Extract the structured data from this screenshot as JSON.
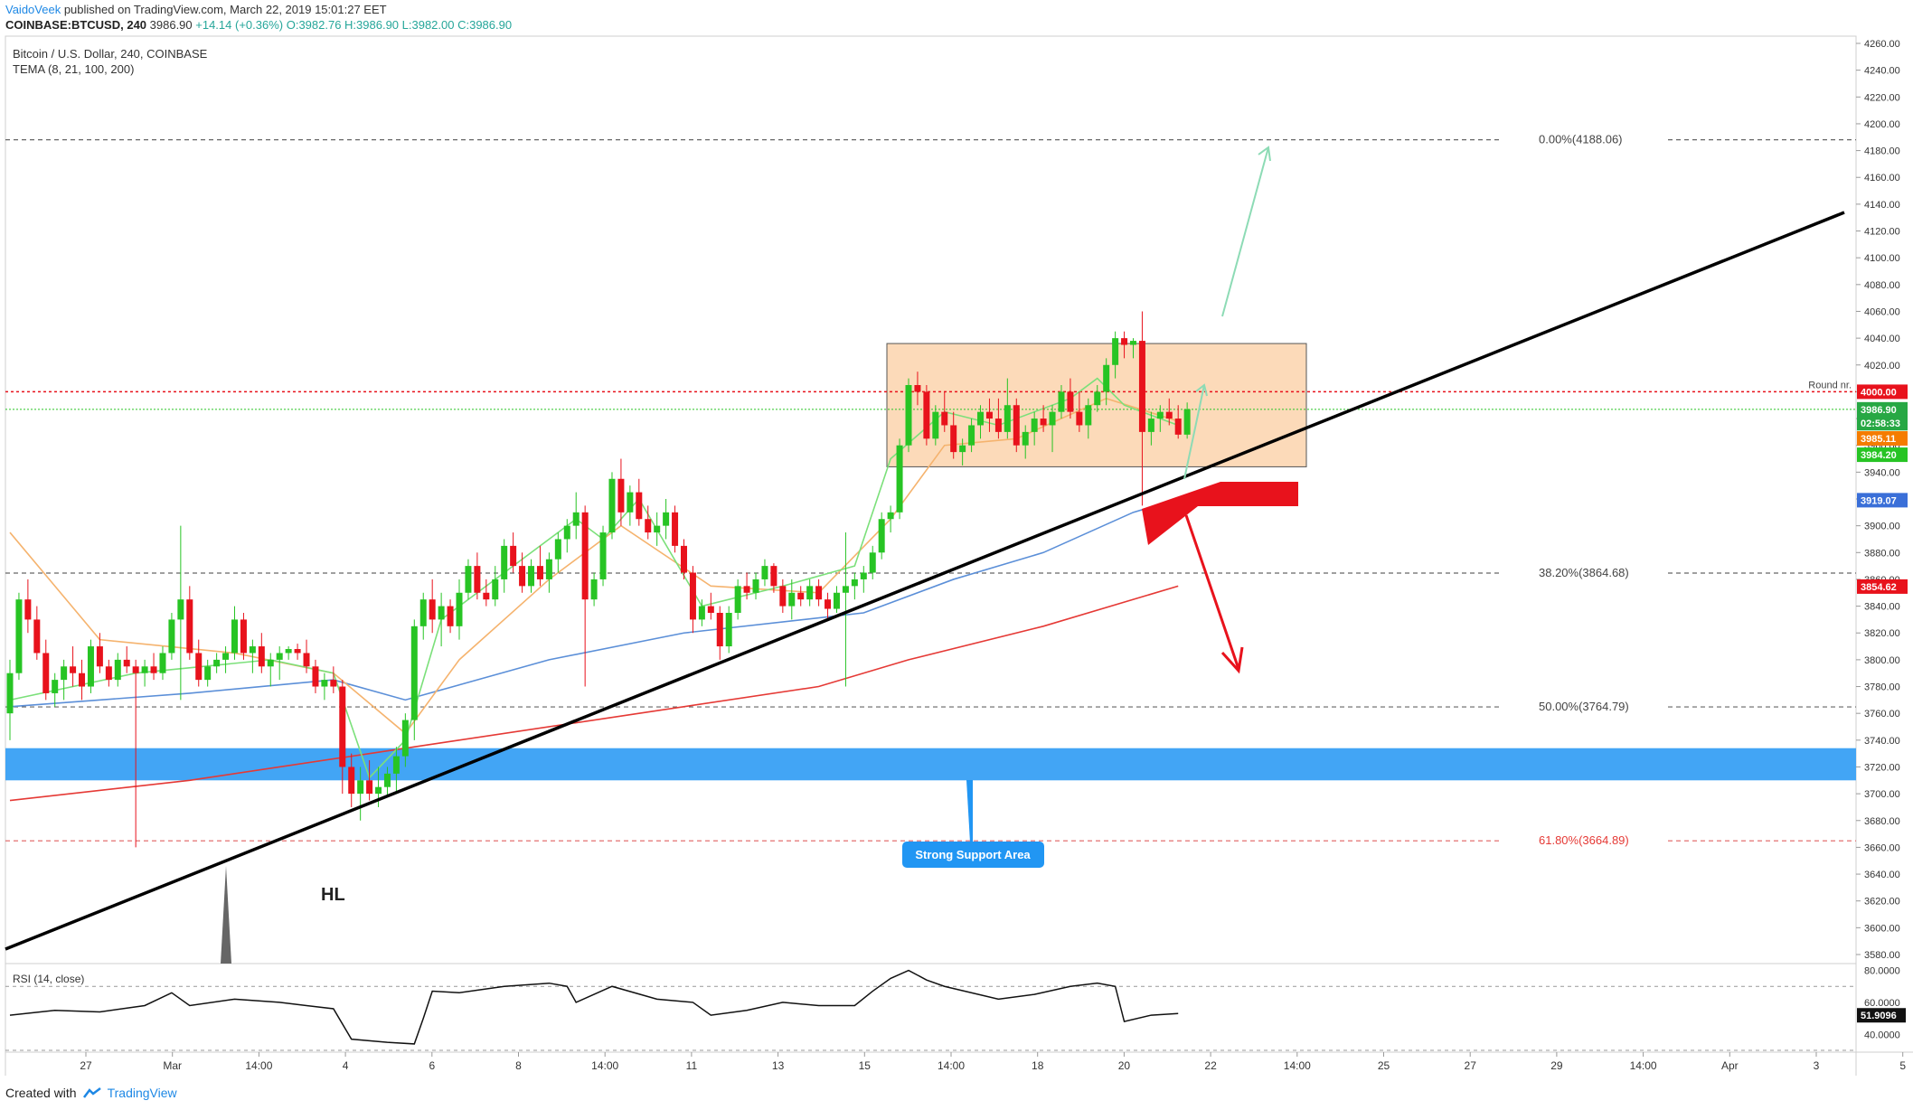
{
  "header": {
    "author": "VaidoVeek",
    "published": " published on TradingView.com, March 22, 2019 15:01:27 EET",
    "symbol_line": "COINBASE:BTCUSD, 240",
    "last": " 3986.90 ",
    "change": "+14.14 (+0.36%)",
    "ohlc": " O:3982.76 H:3986.90 L:3982.00 C:3986.90"
  },
  "legend": {
    "title": "Bitcoin / U.S. Dollar, 240, COINBASE",
    "indicator": "TEMA (8, 21, 100, 200)"
  },
  "rsi": {
    "label": "RSI (14, close)",
    "ticks": [
      "80.0000",
      "60.0000",
      "40.0000"
    ],
    "value_badge": "51.9096",
    "levels": [
      70,
      30
    ],
    "range": [
      30,
      82
    ]
  },
  "footer": {
    "created_with": "Created with",
    "brand": "TradingView"
  },
  "colors": {
    "up": "#27c424",
    "down": "#e8121c",
    "tema_fast": "#7be07a",
    "tema_mid": "#f5b36e",
    "tema_100": "#5b8fd8",
    "tema_200": "#e53935",
    "support": "#2196f3",
    "box": "#f9c89b",
    "trendline": "#000000",
    "fib": "#666666",
    "fib_618": "#e06060",
    "arrow_green": "#8ddbb5",
    "arrow_red": "#e8121c"
  },
  "chart_data": {
    "type": "candlestick",
    "title": "Bitcoin / U.S. Dollar, 240, COINBASE",
    "ylim": [
      3560,
      4265
    ],
    "y_ticks": [
      "4260.00",
      "4240.00",
      "4220.00",
      "4200.00",
      "4180.00",
      "4160.00",
      "4140.00",
      "4120.00",
      "4100.00",
      "4080.00",
      "4060.00",
      "4040.00",
      "4020.00",
      "4000.00",
      "3980.00",
      "3960.00",
      "3940.00",
      "3920.00",
      "3900.00",
      "3880.00",
      "3860.00",
      "3840.00",
      "3820.00",
      "3800.00",
      "3780.00",
      "3760.00",
      "3740.00",
      "3720.00",
      "3700.00",
      "3680.00",
      "3660.00",
      "3640.00",
      "3620.00",
      "3600.00",
      "3580.00"
    ],
    "x_ticks": [
      "27",
      "Mar",
      "14:00",
      "4",
      "6",
      "8",
      "14:00",
      "11",
      "13",
      "15",
      "14:00",
      "18",
      "20",
      "22",
      "14:00",
      "25",
      "27",
      "29",
      "14:00",
      "Apr",
      "3",
      "5"
    ],
    "price_badges": [
      {
        "label": "4000.00",
        "value": 4000.0,
        "color": "#e8121c"
      },
      {
        "label": "3986.90",
        "value": 3986.9,
        "color": "#27a844"
      },
      {
        "label": "02:58:33",
        "value": 3976.5,
        "color": "#27a844"
      },
      {
        "label": "3985.11",
        "value": 3965.2,
        "color": "#f57c00"
      },
      {
        "label": "3984.20",
        "value": 3953.0,
        "color": "#27c424"
      },
      {
        "label": "3919.07",
        "value": 3919.07,
        "color": "#3a6fd8"
      },
      {
        "label": "3854.62",
        "value": 3854.62,
        "color": "#e8121c"
      }
    ],
    "fib_levels": [
      {
        "label": "0.00%(4188.06)",
        "value": 4188.06
      },
      {
        "label": "38.20%(3864.68)",
        "value": 3864.68
      },
      {
        "label": "50.00%(3764.79)",
        "value": 3764.79
      },
      {
        "label": "61.80%(3664.89)",
        "value": 3664.89
      }
    ],
    "round_label": "Round nr.",
    "round_level": 4000,
    "support_zone": [
      3710,
      3734
    ],
    "support_label": "Strong Support Area",
    "range_box": [
      3944,
      4036
    ],
    "last_price": 3986.9,
    "annotations": [
      "HL"
    ],
    "candles": [
      [
        3760,
        3800,
        3740,
        3790
      ],
      [
        3790,
        3850,
        3785,
        3845
      ],
      [
        3845,
        3860,
        3820,
        3830
      ],
      [
        3830,
        3840,
        3800,
        3805
      ],
      [
        3805,
        3815,
        3770,
        3775
      ],
      [
        3775,
        3790,
        3765,
        3785
      ],
      [
        3785,
        3800,
        3770,
        3795
      ],
      [
        3795,
        3810,
        3780,
        3790
      ],
      [
        3790,
        3800,
        3770,
        3780
      ],
      [
        3780,
        3815,
        3775,
        3810
      ],
      [
        3810,
        3820,
        3790,
        3795
      ],
      [
        3795,
        3800,
        3780,
        3785
      ],
      [
        3785,
        3805,
        3780,
        3800
      ],
      [
        3800,
        3810,
        3790,
        3795
      ],
      [
        3795,
        3800,
        3660,
        3790
      ],
      [
        3790,
        3800,
        3780,
        3795
      ],
      [
        3795,
        3805,
        3785,
        3790
      ],
      [
        3790,
        3810,
        3785,
        3805
      ],
      [
        3805,
        3835,
        3800,
        3830
      ],
      [
        3830,
        3900,
        3770,
        3845
      ],
      [
        3845,
        3855,
        3800,
        3805
      ],
      [
        3805,
        3815,
        3780,
        3785
      ],
      [
        3785,
        3800,
        3780,
        3795
      ],
      [
        3795,
        3805,
        3790,
        3800
      ],
      [
        3800,
        3810,
        3790,
        3805
      ],
      [
        3805,
        3840,
        3800,
        3830
      ],
      [
        3830,
        3835,
        3800,
        3805
      ],
      [
        3805,
        3815,
        3790,
        3810
      ],
      [
        3810,
        3820,
        3790,
        3795
      ],
      [
        3795,
        3805,
        3780,
        3800
      ],
      [
        3800,
        3810,
        3785,
        3805
      ],
      [
        3805,
        3810,
        3800,
        3808
      ],
      [
        3808,
        3812,
        3800,
        3805
      ],
      [
        3805,
        3815,
        3790,
        3795
      ],
      [
        3795,
        3800,
        3775,
        3780
      ],
      [
        3780,
        3790,
        3770,
        3785
      ],
      [
        3785,
        3795,
        3775,
        3780
      ],
      [
        3780,
        3785,
        3700,
        3720
      ],
      [
        3720,
        3730,
        3690,
        3700
      ],
      [
        3700,
        3720,
        3680,
        3710
      ],
      [
        3710,
        3725,
        3695,
        3700
      ],
      [
        3700,
        3720,
        3690,
        3705
      ],
      [
        3705,
        3720,
        3698,
        3715
      ],
      [
        3715,
        3735,
        3700,
        3728
      ],
      [
        3728,
        3760,
        3720,
        3755
      ],
      [
        3755,
        3830,
        3740,
        3825
      ],
      [
        3825,
        3850,
        3815,
        3845
      ],
      [
        3845,
        3860,
        3820,
        3830
      ],
      [
        3830,
        3850,
        3810,
        3840
      ],
      [
        3840,
        3845,
        3820,
        3825
      ],
      [
        3825,
        3860,
        3815,
        3850
      ],
      [
        3850,
        3875,
        3845,
        3870
      ],
      [
        3870,
        3880,
        3845,
        3850
      ],
      [
        3850,
        3860,
        3840,
        3845
      ],
      [
        3845,
        3870,
        3840,
        3860
      ],
      [
        3860,
        3890,
        3850,
        3885
      ],
      [
        3885,
        3895,
        3865,
        3870
      ],
      [
        3870,
        3880,
        3850,
        3855
      ],
      [
        3855,
        3875,
        3850,
        3870
      ],
      [
        3870,
        3885,
        3855,
        3860
      ],
      [
        3860,
        3880,
        3850,
        3875
      ],
      [
        3875,
        3895,
        3865,
        3890
      ],
      [
        3890,
        3905,
        3880,
        3900
      ],
      [
        3900,
        3925,
        3890,
        3910
      ],
      [
        3910,
        3915,
        3780,
        3845
      ],
      [
        3845,
        3865,
        3840,
        3860
      ],
      [
        3860,
        3900,
        3855,
        3895
      ],
      [
        3895,
        3940,
        3890,
        3935
      ],
      [
        3935,
        3950,
        3900,
        3910
      ],
      [
        3910,
        3930,
        3900,
        3925
      ],
      [
        3925,
        3935,
        3900,
        3905
      ],
      [
        3905,
        3915,
        3890,
        3895
      ],
      [
        3895,
        3910,
        3885,
        3900
      ],
      [
        3900,
        3920,
        3890,
        3910
      ],
      [
        3910,
        3915,
        3880,
        3885
      ],
      [
        3885,
        3890,
        3860,
        3865
      ],
      [
        3865,
        3870,
        3820,
        3830
      ],
      [
        3830,
        3845,
        3825,
        3840
      ],
      [
        3840,
        3850,
        3830,
        3835
      ],
      [
        3835,
        3840,
        3800,
        3810
      ],
      [
        3810,
        3840,
        3805,
        3835
      ],
      [
        3835,
        3860,
        3830,
        3855
      ],
      [
        3855,
        3865,
        3845,
        3850
      ],
      [
        3850,
        3865,
        3845,
        3860
      ],
      [
        3860,
        3875,
        3855,
        3870
      ],
      [
        3870,
        3872,
        3850,
        3855
      ],
      [
        3855,
        3860,
        3835,
        3840
      ],
      [
        3840,
        3860,
        3830,
        3850
      ],
      [
        3850,
        3855,
        3840,
        3845
      ],
      [
        3845,
        3860,
        3840,
        3855
      ],
      [
        3855,
        3860,
        3840,
        3845
      ],
      [
        3845,
        3850,
        3830,
        3838
      ],
      [
        3838,
        3855,
        3835,
        3850
      ],
      [
        3850,
        3895,
        3780,
        3855
      ],
      [
        3855,
        3865,
        3845,
        3860
      ],
      [
        3860,
        3870,
        3850,
        3865
      ],
      [
        3865,
        3885,
        3860,
        3880
      ],
      [
        3880,
        3910,
        3875,
        3905
      ],
      [
        3905,
        3915,
        3895,
        3910
      ],
      [
        3910,
        3965,
        3905,
        3960
      ],
      [
        3960,
        4010,
        3955,
        4005
      ],
      [
        4005,
        4015,
        3990,
        4000
      ],
      [
        4000,
        4005,
        3960,
        3965
      ],
      [
        3965,
        3990,
        3960,
        3985
      ],
      [
        3985,
        4000,
        3970,
        3975
      ],
      [
        3975,
        3985,
        3950,
        3955
      ],
      [
        3955,
        3965,
        3945,
        3960
      ],
      [
        3960,
        3980,
        3955,
        3975
      ],
      [
        3975,
        3990,
        3965,
        3985
      ],
      [
        3985,
        3995,
        3970,
        3980
      ],
      [
        3980,
        3995,
        3965,
        3970
      ],
      [
        3970,
        4010,
        3965,
        3990
      ],
      [
        3990,
        3995,
        3955,
        3960
      ],
      [
        3960,
        3975,
        3950,
        3970
      ],
      [
        3970,
        3985,
        3960,
        3980
      ],
      [
        3980,
        3990,
        3970,
        3975
      ],
      [
        3975,
        3990,
        3955,
        3985
      ],
      [
        3985,
        4005,
        3980,
        4000
      ],
      [
        4000,
        4010,
        3980,
        3985
      ],
      [
        3985,
        4000,
        3970,
        3975
      ],
      [
        3975,
        3995,
        3965,
        3990
      ],
      [
        3990,
        4005,
        3985,
        4000
      ],
      [
        4000,
        4025,
        3990,
        4020
      ],
      [
        4020,
        4045,
        4010,
        4040
      ],
      [
        4040,
        4045,
        4025,
        4035
      ],
      [
        4035,
        4040,
        4025,
        4038
      ],
      [
        4038,
        4060,
        3915,
        3970
      ],
      [
        3970,
        3985,
        3960,
        3980
      ],
      [
        3980,
        3990,
        3970,
        3985
      ],
      [
        3985,
        3995,
        3975,
        3980
      ],
      [
        3980,
        3990,
        3965,
        3968
      ],
      [
        3968,
        3992,
        3965,
        3987
      ]
    ],
    "tema_fast": [
      [
        0,
        3770
      ],
      [
        14,
        3790
      ],
      [
        29,
        3800
      ],
      [
        36,
        3790
      ],
      [
        40,
        3712
      ],
      [
        44,
        3740
      ],
      [
        48,
        3830
      ],
      [
        56,
        3870
      ],
      [
        63,
        3905
      ],
      [
        66,
        3890
      ],
      [
        70,
        3920
      ],
      [
        77,
        3840
      ],
      [
        86,
        3855
      ],
      [
        94,
        3870
      ],
      [
        98,
        3950
      ],
      [
        104,
        3985
      ],
      [
        110,
        3975
      ],
      [
        118,
        3995
      ],
      [
        121,
        4010
      ],
      [
        124,
        3990
      ],
      [
        130,
        3975
      ]
    ],
    "tema_mid": [
      [
        0,
        3895
      ],
      [
        10,
        3815
      ],
      [
        25,
        3805
      ],
      [
        36,
        3790
      ],
      [
        44,
        3745
      ],
      [
        50,
        3800
      ],
      [
        60,
        3860
      ],
      [
        68,
        3900
      ],
      [
        78,
        3855
      ],
      [
        90,
        3850
      ],
      [
        98,
        3905
      ],
      [
        104,
        3960
      ],
      [
        112,
        3965
      ],
      [
        122,
        3995
      ],
      [
        130,
        3978
      ]
    ],
    "tema_100": [
      [
        0,
        3765
      ],
      [
        20,
        3775
      ],
      [
        36,
        3785
      ],
      [
        44,
        3770
      ],
      [
        60,
        3800
      ],
      [
        75,
        3820
      ],
      [
        95,
        3835
      ],
      [
        105,
        3860
      ],
      [
        115,
        3880
      ],
      [
        125,
        3910
      ],
      [
        130,
        3920
      ]
    ],
    "tema_200": [
      [
        0,
        3695
      ],
      [
        20,
        3710
      ],
      [
        40,
        3730
      ],
      [
        50,
        3740
      ],
      [
        70,
        3760
      ],
      [
        90,
        3780
      ],
      [
        100,
        3800
      ],
      [
        115,
        3825
      ],
      [
        130,
        3855
      ]
    ],
    "rsi_values": [
      [
        0,
        52
      ],
      [
        5,
        55
      ],
      [
        10,
        54
      ],
      [
        15,
        58
      ],
      [
        18,
        66
      ],
      [
        20,
        58
      ],
      [
        25,
        62
      ],
      [
        30,
        60
      ],
      [
        33,
        58
      ],
      [
        36,
        56
      ],
      [
        38,
        37
      ],
      [
        42,
        35
      ],
      [
        45,
        34
      ],
      [
        46,
        50
      ],
      [
        47,
        67
      ],
      [
        50,
        66
      ],
      [
        55,
        70
      ],
      [
        60,
        72
      ],
      [
        62,
        70
      ],
      [
        63,
        60
      ],
      [
        67,
        70
      ],
      [
        72,
        62
      ],
      [
        76,
        60
      ],
      [
        78,
        52
      ],
      [
        82,
        55
      ],
      [
        86,
        60
      ],
      [
        90,
        58
      ],
      [
        94,
        58
      ],
      [
        96,
        67
      ],
      [
        98,
        75
      ],
      [
        100,
        80
      ],
      [
        102,
        74
      ],
      [
        104,
        70
      ],
      [
        110,
        62
      ],
      [
        114,
        65
      ],
      [
        118,
        70
      ],
      [
        121,
        72
      ],
      [
        123,
        70
      ],
      [
        124,
        48
      ],
      [
        127,
        52
      ],
      [
        130,
        53
      ]
    ]
  }
}
